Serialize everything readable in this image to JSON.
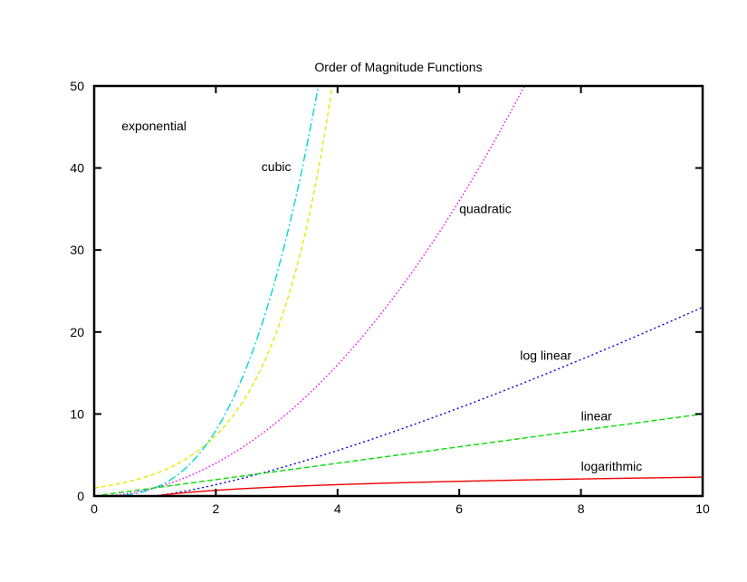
{
  "chart_data": {
    "type": "line",
    "title": "Order of Magnitude Functions",
    "xlabel": "",
    "ylabel": "",
    "xlim": [
      0,
      10
    ],
    "ylim": [
      0,
      50
    ],
    "x_ticks": [
      "0",
      "2",
      "4",
      "6",
      "8",
      "10"
    ],
    "y_ticks": [
      "0",
      "10",
      "20",
      "30",
      "40",
      "50"
    ],
    "grid": false,
    "series": [
      {
        "key": "exponential",
        "function": "exp(x)",
        "color": "#e8e800",
        "dash": "5,3",
        "label": {
          "text": "exponential",
          "x": 0.45,
          "y": 44.6
        }
      },
      {
        "key": "cubic",
        "function": "x^3",
        "color": "#00d8d8",
        "dash": "9,3,2,3",
        "label": {
          "text": "cubic",
          "x": 2.75,
          "y": 39.6
        }
      },
      {
        "key": "quadratic",
        "function": "x^2",
        "color": "#ee00ee",
        "dash": "1.5,2.5",
        "label": {
          "text": "quadratic",
          "x": 6.0,
          "y": 34.5
        }
      },
      {
        "key": "log_linear",
        "function": "x*ln(x)",
        "color": "#0000dd",
        "dash": "2,3",
        "label": {
          "text": "log linear",
          "x": 7.0,
          "y": 16.6
        }
      },
      {
        "key": "linear",
        "function": "x",
        "color": "#00dd00",
        "dash": "6,3",
        "label": {
          "text": "linear",
          "x": 8.0,
          "y": 9.2
        }
      },
      {
        "key": "logarithmic",
        "function": "ln(x)",
        "color": "#ee0000",
        "dash": "",
        "label": {
          "text": "logarithmic",
          "x": 8.0,
          "y": 3.1
        }
      }
    ]
  }
}
